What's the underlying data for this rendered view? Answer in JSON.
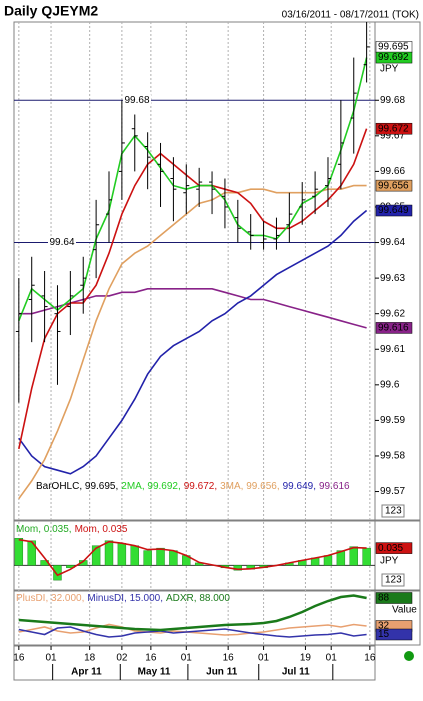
{
  "chart_data": [
    {
      "type": "ohlc",
      "title": "Daily QJEYM2",
      "subtitle": "03/16/2011 - 08/17/2011 (TOK)",
      "unit": "JPY",
      "x": [
        0,
        4,
        8,
        12,
        16,
        20,
        24,
        28,
        32,
        36,
        40,
        44,
        48,
        52,
        56,
        60,
        64,
        68,
        72,
        76,
        80,
        84,
        88,
        92,
        96,
        100,
        104,
        108
      ],
      "xlim": [
        -1.5,
        110.6
      ],
      "xticks": [
        {
          "value": 0,
          "label": "16"
        },
        {
          "value": 10,
          "label": "01"
        },
        {
          "value": 22,
          "label": "18"
        },
        {
          "value": 32,
          "label": "02"
        },
        {
          "value": 41,
          "label": "16"
        },
        {
          "value": 52,
          "label": "01"
        },
        {
          "value": 65,
          "label": "16"
        },
        {
          "value": 76,
          "label": "01"
        },
        {
          "value": 89,
          "label": "19"
        },
        {
          "value": 97,
          "label": "01"
        },
        {
          "value": 109,
          "label": "16"
        }
      ],
      "months": [
        {
          "value": 21,
          "label": "Apr 11"
        },
        {
          "value": 42,
          "label": "May 11"
        },
        {
          "value": 63,
          "label": "Jun 11"
        },
        {
          "value": 86,
          "label": "Jul 11"
        }
      ],
      "grid": true,
      "ylim": [
        99.562,
        99.702
      ],
      "yticks": [
        99.57,
        99.58,
        99.59,
        99.6,
        99.61,
        99.62,
        99.63,
        99.64,
        99.65,
        99.66,
        99.67,
        99.68
      ],
      "levels": [
        99.68,
        99.64
      ],
      "ohlc": {
        "color": "#000000",
        "last": 99.695,
        "open": [
          99.615,
          99.624,
          99.625,
          99.62,
          99.622,
          99.628,
          99.638,
          99.648,
          99.66,
          99.672,
          99.667,
          99.662,
          99.658,
          99.654,
          99.655,
          99.657,
          99.653,
          99.647,
          99.643,
          99.64,
          99.641,
          99.645,
          99.65,
          99.653,
          99.656,
          99.662,
          99.675,
          99.69
        ],
        "high": [
          99.63,
          99.636,
          99.632,
          99.628,
          99.632,
          99.636,
          99.652,
          99.66,
          99.68,
          99.676,
          99.671,
          99.668,
          99.664,
          99.662,
          99.661,
          99.66,
          99.658,
          99.652,
          99.648,
          99.646,
          99.647,
          99.654,
          99.657,
          99.66,
          99.664,
          99.68,
          99.692,
          99.702
        ],
        "low": [
          99.595,
          99.612,
          99.612,
          99.6,
          99.614,
          99.62,
          99.63,
          99.64,
          99.652,
          99.66,
          99.655,
          99.65,
          99.646,
          99.648,
          99.65,
          99.648,
          99.644,
          99.64,
          99.638,
          99.638,
          99.638,
          99.64,
          99.645,
          99.648,
          99.65,
          99.655,
          99.665,
          99.685
        ],
        "close": [
          99.62,
          99.628,
          99.622,
          99.615,
          99.625,
          99.63,
          99.645,
          99.652,
          99.668,
          99.67,
          99.664,
          99.66,
          99.655,
          99.656,
          99.657,
          99.655,
          99.65,
          99.644,
          99.642,
          99.641,
          99.642,
          99.648,
          99.652,
          99.655,
          99.658,
          99.668,
          99.682,
          99.695
        ]
      },
      "series": [
        {
          "color": "#22cc22",
          "text_color": "#000000",
          "last": 99.692,
          "values": [
            99.618,
            99.627,
            99.624,
            99.621,
            99.624,
            99.627,
            99.641,
            99.649,
            99.665,
            99.67,
            99.666,
            99.661,
            99.656,
            99.655,
            99.656,
            99.656,
            99.652,
            99.645,
            99.642,
            99.642,
            99.641,
            99.645,
            99.651,
            99.653,
            99.656,
            99.666,
            99.677,
            99.692
          ]
        },
        {
          "color": "#cc1111",
          "text_color": "#ffffff",
          "last": 99.672,
          "values": [
            99.582,
            99.599,
            99.613,
            99.62,
            99.623,
            99.623,
            99.628,
            99.637,
            99.648,
            99.656,
            99.662,
            99.665,
            99.662,
            99.659,
            99.656,
            99.656,
            99.655,
            99.654,
            99.651,
            99.646,
            99.644,
            99.644,
            99.646,
            99.649,
            99.652,
            99.656,
            99.662,
            99.672
          ]
        },
        {
          "color": "#e0a060",
          "text_color": "#000000",
          "last": 99.656,
          "values": [
            99.568,
            99.573,
            99.579,
            99.587,
            99.596,
            99.607,
            99.618,
            99.627,
            99.634,
            99.637,
            99.639,
            99.642,
            99.645,
            99.648,
            99.651,
            99.652,
            99.654,
            99.654,
            99.655,
            99.655,
            99.654,
            99.654,
            99.654,
            99.654,
            99.655,
            99.655,
            99.656,
            99.656
          ]
        },
        {
          "color": "#2222aa",
          "text_color": "#ffffff",
          "last": 99.649,
          "values": [
            99.585,
            99.58,
            99.577,
            99.576,
            99.575,
            99.577,
            99.58,
            99.585,
            99.59,
            99.596,
            99.603,
            99.608,
            99.611,
            99.613,
            99.615,
            99.618,
            99.62,
            99.623,
            99.625,
            99.628,
            99.631,
            99.633,
            99.635,
            99.637,
            99.639,
            99.642,
            99.646,
            99.649
          ]
        },
        {
          "color": "#882288",
          "text_color": "#ffffff",
          "last": 99.616,
          "values": [
            99.62,
            99.62,
            99.621,
            99.622,
            99.623,
            99.624,
            99.625,
            99.625,
            99.626,
            99.626,
            99.627,
            99.627,
            99.627,
            99.627,
            99.627,
            99.627,
            99.626,
            99.625,
            99.624,
            99.624,
            99.623,
            99.622,
            99.621,
            99.62,
            99.619,
            99.618,
            99.617,
            99.616
          ]
        }
      ],
      "legend": [
        {
          "label": "BarOHLC, 99.695,",
          "color": "#000000"
        },
        {
          "label": "2MA, 99.692,",
          "color": "#22cc22"
        },
        {
          "label": "99.672,",
          "color": "#cc1111"
        },
        {
          "label": "3MA, 99.656,",
          "color": "#e0a060"
        },
        {
          "label": "99.649,",
          "color": "#2222aa"
        },
        {
          "label": "99.616",
          "color": "#882288"
        }
      ],
      "scale_button": "123"
    },
    {
      "type": "bar",
      "unit": "JPY",
      "ylim": [
        -0.05,
        0.088
      ],
      "scale_button": "123",
      "series": [
        {
          "type": "bar",
          "color": "#33dd33",
          "values": [
            0.055,
            0.05,
            0.01,
            -0.03,
            -0.005,
            0.01,
            0.04,
            0.05,
            0.045,
            0.04,
            0.03,
            0.035,
            0.03,
            0.02,
            0.005,
            0.0,
            -0.005,
            -0.01,
            -0.008,
            -0.005,
            0.0,
            0.005,
            0.01,
            0.015,
            0.02,
            0.03,
            0.038,
            0.035
          ]
        },
        {
          "type": "line",
          "color": "#cc1111",
          "text_color": "#ffffff",
          "last": 0.035,
          "values": [
            0.052,
            0.048,
            0.015,
            -0.02,
            -0.008,
            0.008,
            0.035,
            0.048,
            0.045,
            0.04,
            0.032,
            0.033,
            0.03,
            0.02,
            0.006,
            0.001,
            -0.004,
            -0.008,
            -0.007,
            -0.004,
            0.0,
            0.005,
            0.01,
            0.015,
            0.02,
            0.028,
            0.036,
            0.035
          ]
        }
      ],
      "legend": [
        {
          "label": "Mom, 0.035,",
          "color": "#22aa22"
        },
        {
          "label": "Mom, 0.035",
          "color": "#cc1111"
        }
      ]
    },
    {
      "type": "line",
      "ylim": [
        0,
        100
      ],
      "value_title": "Value",
      "series": [
        {
          "type": "line",
          "color": "#e8a070",
          "text_color": "#000000",
          "last": 32,
          "values": [
            20,
            25,
            30,
            22,
            18,
            20,
            28,
            35,
            30,
            22,
            20,
            18,
            22,
            20,
            18,
            16,
            14,
            15,
            18,
            20,
            24,
            28,
            30,
            32,
            34,
            30,
            35,
            32
          ]
        },
        {
          "type": "line",
          "color": "#3333aa",
          "text_color": "#ffffff",
          "last": 15,
          "values": [
            25,
            20,
            15,
            28,
            30,
            22,
            15,
            10,
            12,
            18,
            20,
            22,
            18,
            20,
            22,
            24,
            26,
            22,
            18,
            15,
            12,
            10,
            12,
            14,
            15,
            18,
            12,
            15
          ]
        },
        {
          "type": "line",
          "color": "#1a7a1a",
          "text_color": "#ffffff",
          "last": 88,
          "width": 2.5,
          "values": [
            44,
            42,
            40,
            38,
            36,
            34,
            32,
            30,
            28,
            26,
            25,
            24,
            26,
            28,
            30,
            32,
            34,
            35,
            36,
            38,
            42,
            50,
            60,
            72,
            82,
            90,
            93,
            88
          ]
        }
      ],
      "legend": [
        {
          "label": "PlusDI, 32.000,",
          "color": "#e8a070"
        },
        {
          "label": "MinusDI, 15.000,",
          "color": "#3333aa"
        },
        {
          "label": "ADXR, 88.000",
          "color": "#1a7a1a"
        }
      ]
    }
  ]
}
